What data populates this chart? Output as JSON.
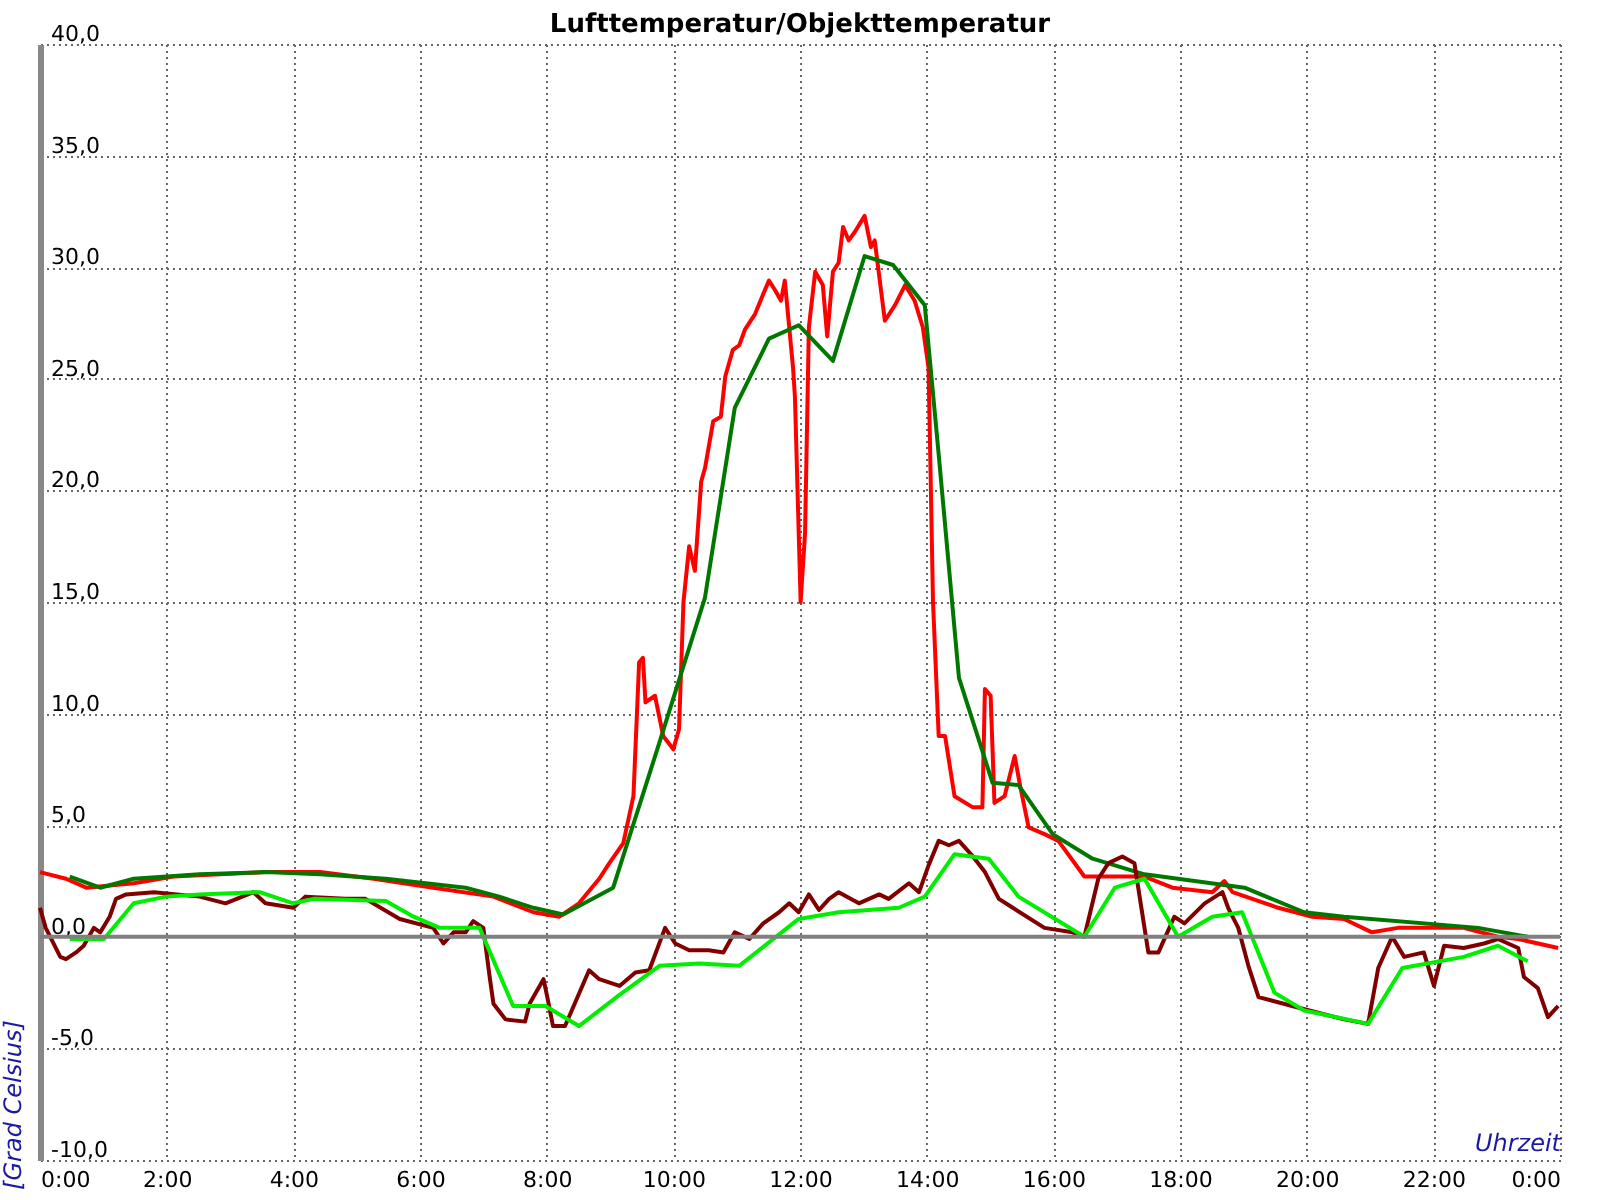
{
  "chart_data": {
    "type": "line",
    "title": "Lufttemperatur/Objekttemperatur",
    "xlabel": "Uhrzeit",
    "ylabel": "[Grad Celsius]",
    "xlim": [
      0,
      24
    ],
    "ylim": [
      -10,
      40
    ],
    "xticks": [
      {
        "value": 0,
        "label": "0:00"
      },
      {
        "value": 2,
        "label": "2:00"
      },
      {
        "value": 4,
        "label": "4:00"
      },
      {
        "value": 6,
        "label": "6:00"
      },
      {
        "value": 8,
        "label": "8:00"
      },
      {
        "value": 10,
        "label": "10:00"
      },
      {
        "value": 12,
        "label": "12:00"
      },
      {
        "value": 14,
        "label": "14:00"
      },
      {
        "value": 16,
        "label": "16:00"
      },
      {
        "value": 18,
        "label": "18:00"
      },
      {
        "value": 20,
        "label": "20:00"
      },
      {
        "value": 22,
        "label": "22:00"
      },
      {
        "value": 24,
        "label": "0:00"
      }
    ],
    "yticks": [
      {
        "value": -10,
        "label": "-10,0"
      },
      {
        "value": -5,
        "label": "-5,0"
      },
      {
        "value": 0,
        "label": "0,0"
      },
      {
        "value": 5,
        "label": "5,0"
      },
      {
        "value": 10,
        "label": "10,0"
      },
      {
        "value": 15,
        "label": "15,0"
      },
      {
        "value": 20,
        "label": "20,0"
      },
      {
        "value": 25,
        "label": "25,0"
      },
      {
        "value": 30,
        "label": "30,0"
      },
      {
        "value": 35,
        "label": "35,0"
      },
      {
        "value": 40,
        "label": "40,0"
      }
    ],
    "grid": true,
    "ref_lines": [
      {
        "axis": "y",
        "value": 0,
        "label": null,
        "color": "#808080"
      }
    ],
    "series": [
      {
        "color": "#ff0000",
        "x": [
          0,
          0.41,
          0.73,
          1.48,
          2.11,
          3.56,
          4.42,
          5.27,
          6.21,
          7.16,
          7.79,
          8.2,
          8.51,
          8.83,
          8.99,
          9.21,
          9.37,
          9.46,
          9.52,
          9.56,
          9.71,
          9.84,
          10.0,
          10.09,
          10.16,
          10.25,
          10.34,
          10.44,
          10.5,
          10.63,
          10.75,
          10.82,
          10.94,
          11.04,
          11.13,
          11.29,
          11.42,
          11.51,
          11.6,
          11.7,
          11.76,
          11.89,
          11.92,
          12.01,
          12.08,
          12.14,
          12.24,
          12.36,
          12.43,
          12.52,
          12.61,
          12.68,
          12.77,
          12.87,
          13.02,
          13.12,
          13.18,
          13.34,
          13.5,
          13.66,
          13.81,
          13.94,
          14.03,
          14.1,
          14.19,
          14.29,
          14.44,
          14.73,
          14.88,
          14.92,
          15.01,
          15.07,
          15.23,
          15.39,
          15.48,
          15.61,
          15.86,
          16.08,
          16.49,
          16.71,
          17.44,
          17.88,
          18.51,
          18.7,
          18.83,
          19.55,
          20.09,
          20.59,
          21.03,
          21.44,
          22.48,
          23.02,
          23.34,
          23.97
        ],
        "values": [
          2.9,
          2.6,
          2.2,
          2.4,
          2.7,
          2.9,
          2.9,
          2.6,
          2.2,
          1.8,
          1.1,
          0.9,
          1.5,
          2.6,
          3.3,
          4.2,
          6.3,
          12.3,
          12.5,
          10.5,
          10.8,
          9.0,
          8.4,
          9.3,
          15.0,
          17.5,
          16.4,
          20.4,
          21.0,
          23.1,
          23.3,
          25.1,
          26.3,
          26.5,
          27.2,
          27.9,
          28.8,
          29.4,
          29.0,
          28.5,
          29.4,
          25.5,
          24.2,
          15.0,
          18.1,
          27.3,
          29.8,
          29.2,
          26.9,
          29.8,
          30.2,
          31.8,
          31.2,
          31.6,
          32.3,
          30.9,
          31.2,
          27.6,
          28.3,
          29.2,
          28.5,
          27.3,
          25.5,
          15.0,
          9.0,
          9.0,
          6.3,
          5.8,
          5.8,
          11.1,
          10.8,
          6.0,
          6.3,
          8.1,
          6.7,
          4.9,
          4.6,
          4.3,
          2.7,
          2.7,
          2.7,
          2.2,
          2.0,
          2.5,
          2.0,
          1.3,
          0.9,
          0.8,
          0.2,
          0.4,
          0.4,
          0.0,
          -0.1,
          -0.5
        ]
      },
      {
        "color": "#007800",
        "x": [
          0.47,
          0.95,
          1.48,
          2.52,
          3.56,
          4.42,
          5.46,
          6.72,
          7.25,
          7.79,
          8.26,
          9.05,
          9.78,
          10.5,
          10.97,
          11.51,
          11.98,
          12.52,
          13.02,
          13.47,
          13.97,
          14.19,
          14.51,
          15.04,
          15.45,
          15.99,
          16.62,
          17.44,
          19.02,
          19.96,
          20.59,
          22.71,
          23.49
        ],
        "values": [
          2.7,
          2.2,
          2.6,
          2.8,
          2.9,
          2.8,
          2.6,
          2.2,
          1.8,
          1.3,
          1.0,
          2.2,
          8.7,
          15.2,
          23.7,
          26.8,
          27.4,
          25.8,
          30.5,
          30.1,
          28.3,
          21.6,
          11.6,
          6.9,
          6.8,
          4.6,
          3.5,
          2.8,
          2.2,
          1.1,
          0.9,
          0.4,
          0.0
        ]
      },
      {
        "color": "#800000",
        "x": [
          0,
          0.09,
          0.32,
          0.41,
          0.57,
          0.69,
          0.85,
          0.95,
          1.1,
          1.2,
          1.36,
          1.8,
          2.52,
          2.93,
          3.37,
          3.56,
          4.0,
          4.19,
          4.82,
          5.14,
          5.68,
          6.21,
          6.37,
          6.53,
          6.72,
          6.84,
          7.0,
          7.1,
          7.16,
          7.35,
          7.66,
          7.73,
          7.95,
          8.01,
          8.1,
          8.29,
          8.67,
          8.83,
          9.15,
          9.4,
          9.62,
          9.87,
          10.03,
          10.25,
          10.56,
          10.79,
          10.97,
          11.2,
          11.42,
          11.67,
          11.83,
          11.98,
          12.14,
          12.3,
          12.46,
          12.61,
          12.93,
          13.25,
          13.4,
          13.72,
          13.88,
          14.03,
          14.19,
          14.35,
          14.51,
          14.73,
          14.92,
          15.14,
          15.36,
          15.86,
          16.3,
          16.49,
          16.71,
          16.87,
          17.09,
          17.28,
          17.5,
          17.66,
          17.91,
          18.07,
          18.39,
          18.67,
          18.76,
          18.92,
          19.08,
          19.24,
          19.77,
          20.59,
          20.97,
          21.13,
          21.35,
          21.54,
          21.85,
          22.01,
          22.17,
          22.48,
          22.8,
          23.02,
          23.34,
          23.43,
          23.65,
          23.81,
          23.97
        ],
        "values": [
          1.3,
          0.4,
          -0.9,
          -1.0,
          -0.7,
          -0.4,
          0.4,
          0.2,
          0.9,
          1.7,
          1.9,
          2.0,
          1.8,
          1.5,
          2.0,
          1.5,
          1.3,
          1.8,
          1.7,
          1.7,
          0.8,
          0.4,
          -0.3,
          0.2,
          0.2,
          0.7,
          0.4,
          -1.8,
          -3.0,
          -3.7,
          -3.8,
          -3.0,
          -1.9,
          -2.7,
          -4.0,
          -4.0,
          -1.5,
          -1.9,
          -2.2,
          -1.6,
          -1.5,
          0.4,
          -0.3,
          -0.6,
          -0.6,
          -0.7,
          0.2,
          -0.1,
          0.6,
          1.1,
          1.5,
          1.1,
          1.9,
          1.2,
          1.7,
          2.0,
          1.5,
          1.9,
          1.7,
          2.4,
          2.0,
          3.2,
          4.3,
          4.1,
          4.3,
          3.6,
          2.9,
          1.7,
          1.3,
          0.4,
          0.2,
          0.0,
          2.6,
          3.3,
          3.6,
          3.3,
          -0.7,
          -0.7,
          0.9,
          0.6,
          1.5,
          2.0,
          1.3,
          0.4,
          -1.3,
          -2.7,
          -3.1,
          -3.7,
          -3.9,
          -1.4,
          0.0,
          -0.9,
          -0.7,
          -2.2,
          -0.4,
          -0.5,
          -0.3,
          -0.1,
          -0.5,
          -1.8,
          -2.3,
          -3.6,
          -3.1
        ]
      },
      {
        "color": "#00ee00",
        "x": [
          0.47,
          1.01,
          1.48,
          1.99,
          2.52,
          3.47,
          4.0,
          4.32,
          5.46,
          5.9,
          6.31,
          6.94,
          7.47,
          7.98,
          8.51,
          9.15,
          9.78,
          10.41,
          11.04,
          11.98,
          12.61,
          13.56,
          13.97,
          14.44,
          14.98,
          15.45,
          16.49,
          16.97,
          17.44,
          17.97,
          18.51,
          18.98,
          19.49,
          19.96,
          20.97,
          21.51,
          22.48,
          23.02,
          23.49
        ],
        "values": [
          -0.1,
          -0.1,
          1.5,
          1.8,
          1.9,
          2.0,
          1.5,
          1.7,
          1.6,
          0.9,
          0.4,
          0.4,
          -3.1,
          -3.1,
          -4.0,
          -2.6,
          -1.3,
          -1.2,
          -1.3,
          0.8,
          1.1,
          1.3,
          1.8,
          3.7,
          3.5,
          1.8,
          0.0,
          2.2,
          2.6,
          0.0,
          0.9,
          1.1,
          -2.5,
          -3.3,
          -3.9,
          -1.4,
          -0.9,
          -0.4,
          -1.1
        ]
      }
    ]
  }
}
